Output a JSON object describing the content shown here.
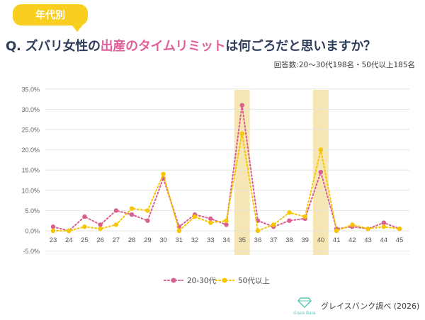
{
  "header": {
    "tag_label": "年代別",
    "question_prefix": "Q. ズバリ女性の",
    "question_highlight": "出産のタイムリミット",
    "question_suffix": "は何ごろだと思いますか？",
    "sample_note": "回答数:20〜30代198名・50代以上185名"
  },
  "footer": {
    "logo_text": "Grace Bank",
    "source": "グレイスバンク調べ (2026)"
  },
  "colors": {
    "tag": "#f9cf1f",
    "highlight_text": "#e0609a",
    "series_pink": "#d95f8f",
    "series_yellow": "#f7c600",
    "highlight_band": "#f5e6b4",
    "logo": "#5bc8b8"
  },
  "chart_data": {
    "type": "line",
    "x": [
      23,
      24,
      25,
      26,
      27,
      28,
      29,
      30,
      31,
      32,
      33,
      34,
      35,
      36,
      37,
      38,
      39,
      40,
      41,
      42,
      43,
      44,
      45
    ],
    "series": [
      {
        "name": "20-30代",
        "values": [
          1.0,
          0.0,
          3.5,
          1.5,
          5.0,
          4.0,
          2.5,
          13.0,
          1.0,
          4.0,
          3.0,
          1.5,
          31.0,
          2.5,
          1.0,
          2.5,
          3.0,
          14.5,
          0.5,
          1.0,
          0.5,
          2.0,
          0.5
        ]
      },
      {
        "name": "50代以上",
        "values": [
          0.0,
          0.0,
          1.0,
          0.5,
          1.5,
          5.5,
          5.0,
          14.0,
          0.0,
          3.5,
          2.0,
          2.5,
          24.0,
          0.0,
          1.5,
          4.5,
          3.5,
          20.0,
          0.0,
          1.5,
          0.5,
          1.0,
          0.5
        ]
      }
    ],
    "y_ticks": [
      "35.0%",
      "30.0%",
      "25.0%",
      "20.0%",
      "15.0%",
      "10.0%",
      "5.0%",
      "0.0%",
      "-5.0%"
    ],
    "ylim": [
      -5,
      35
    ],
    "highlighted_x": [
      35,
      40
    ],
    "grid": true,
    "legend_position": "bottom"
  }
}
